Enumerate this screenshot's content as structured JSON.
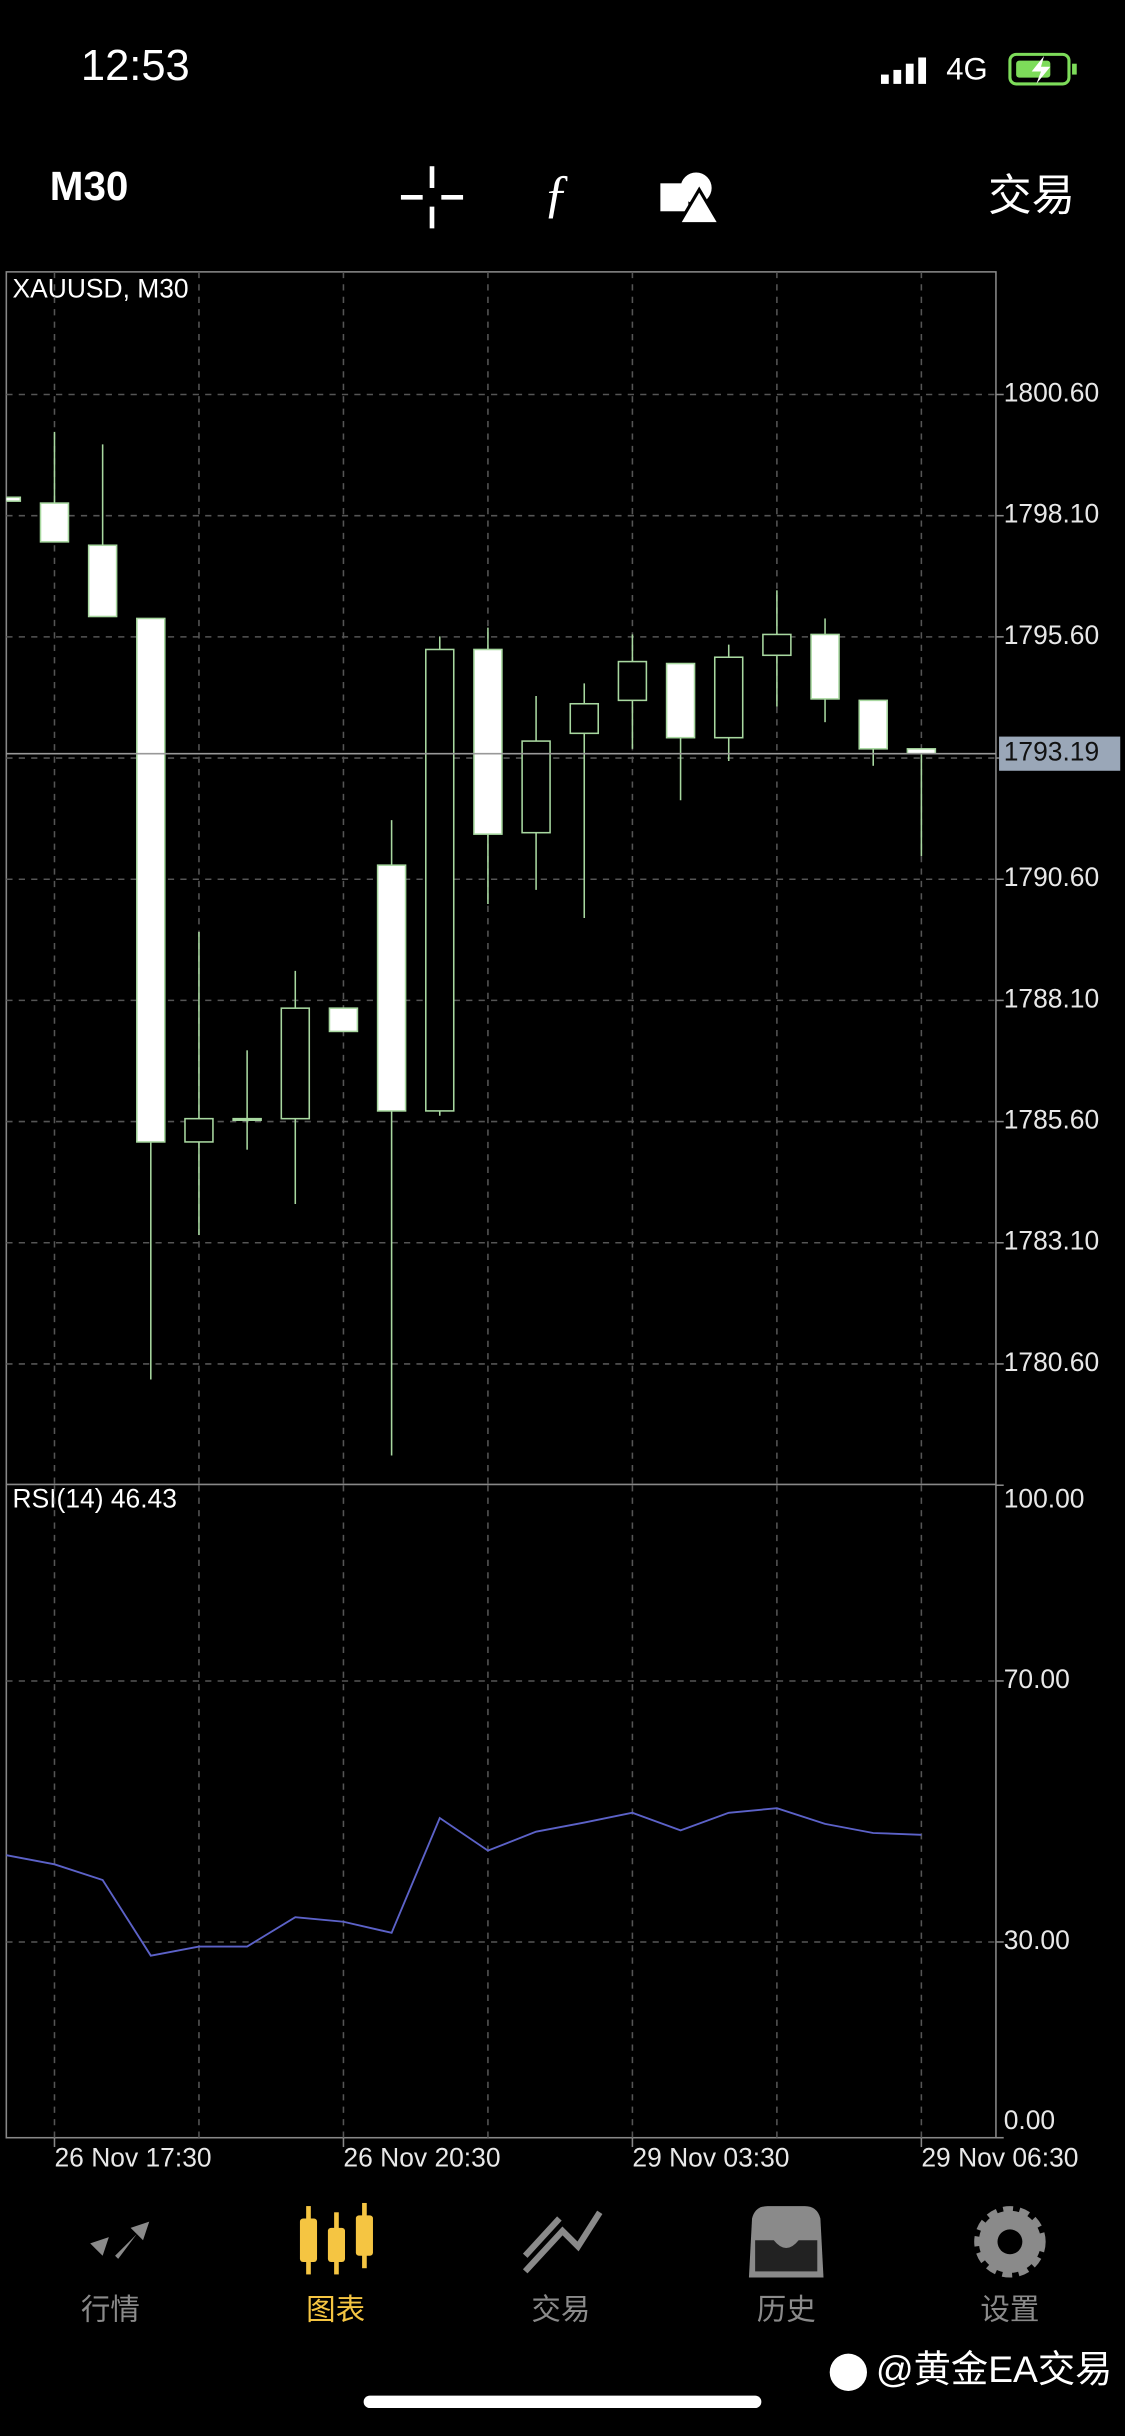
{
  "status_bar": {
    "time": "12:53",
    "network": "4G"
  },
  "toolbar": {
    "timeframe": "M30",
    "trade": "交易"
  },
  "chart_data": [
    {
      "type": "candlestick",
      "title": "XAUUSD, M30",
      "categories": [
        null,
        "26 Nov 17:30",
        null,
        null,
        null,
        null,
        null,
        "26 Nov 20:30",
        null,
        null,
        null,
        null,
        null,
        "29 Nov 03:30",
        null,
        null,
        null,
        null,
        null,
        "29 Nov 06:30"
      ],
      "open": [
        1798.48,
        1798.36,
        1797.49,
        1795.98,
        1785.18,
        1785.66,
        1785.66,
        1787.94,
        1790.89,
        1785.82,
        1795.34,
        1791.56,
        1793.61,
        1794.29,
        1795.05,
        1793.52,
        1795.22,
        1795.65,
        1794.29,
        1793.29
      ],
      "high": [
        1798.48,
        1799.83,
        1799.57,
        1795.98,
        1789.51,
        1787.07,
        1788.71,
        1787.94,
        1791.82,
        1795.61,
        1795.79,
        1794.38,
        1794.64,
        1795.65,
        1795.05,
        1795.44,
        1796.56,
        1795.98,
        1794.29,
        1793.29
      ],
      "low": [
        1798.4,
        1797.56,
        1796.02,
        1780.28,
        1783.26,
        1785.02,
        1783.9,
        1787.46,
        1778.71,
        1785.72,
        1790.09,
        1790.38,
        1789.8,
        1793.29,
        1792.23,
        1793.04,
        1794.16,
        1793.84,
        1792.94,
        1791.08
      ],
      "close": [
        1798.4,
        1797.56,
        1796.02,
        1785.18,
        1785.66,
        1785.66,
        1787.94,
        1787.46,
        1785.82,
        1795.34,
        1791.53,
        1793.45,
        1794.22,
        1795.09,
        1793.52,
        1795.18,
        1795.65,
        1794.32,
        1793.29,
        1793.19
      ],
      "ylim": [
        1778.13,
        1803.13
      ],
      "yticks": [
        {
          "value": 1800.6,
          "label": "1800.60"
        },
        {
          "value": 1798.1,
          "label": "1798.10"
        },
        {
          "value": 1795.6,
          "label": "1795.60"
        },
        {
          "value": 1793.1,
          "label": "1793.10"
        },
        {
          "value": 1790.6,
          "label": "1790.60"
        },
        {
          "value": 1788.1,
          "label": "1788.10"
        },
        {
          "value": 1785.6,
          "label": "1785.60"
        },
        {
          "value": 1783.1,
          "label": "1783.10"
        },
        {
          "value": 1780.6,
          "label": "1780.60"
        }
      ],
      "price_line": {
        "value": 1793.19,
        "label": "1793.19"
      },
      "grid": true,
      "colors": {
        "bear_body": "#ffffff",
        "bull_body": "#000000",
        "outline": "#a8d8a0"
      }
    },
    {
      "type": "line",
      "title": "RSI(14) 46.43",
      "values": [
        43.3,
        41.9,
        39.5,
        27.9,
        29.3,
        29.3,
        33.8,
        33.1,
        31.4,
        49.0,
        44.0,
        46.9,
        48.3,
        49.8,
        47.1,
        49.8,
        50.5,
        48.1,
        46.7,
        46.43
      ],
      "color": "#5c62c8",
      "ylim": [
        0,
        100
      ],
      "yticks": [
        {
          "value": 0,
          "label": "0.00"
        },
        {
          "value": 30,
          "label": "30.00"
        },
        {
          "value": 70,
          "label": "70.00"
        },
        {
          "value": 100,
          "label": "100.00"
        }
      ],
      "grid": true
    }
  ],
  "tab_bar": {
    "tabs": [
      "行情",
      "图表",
      "交易",
      "历史",
      "设置"
    ],
    "active": 1
  },
  "watermark": "@黄金EA交易"
}
